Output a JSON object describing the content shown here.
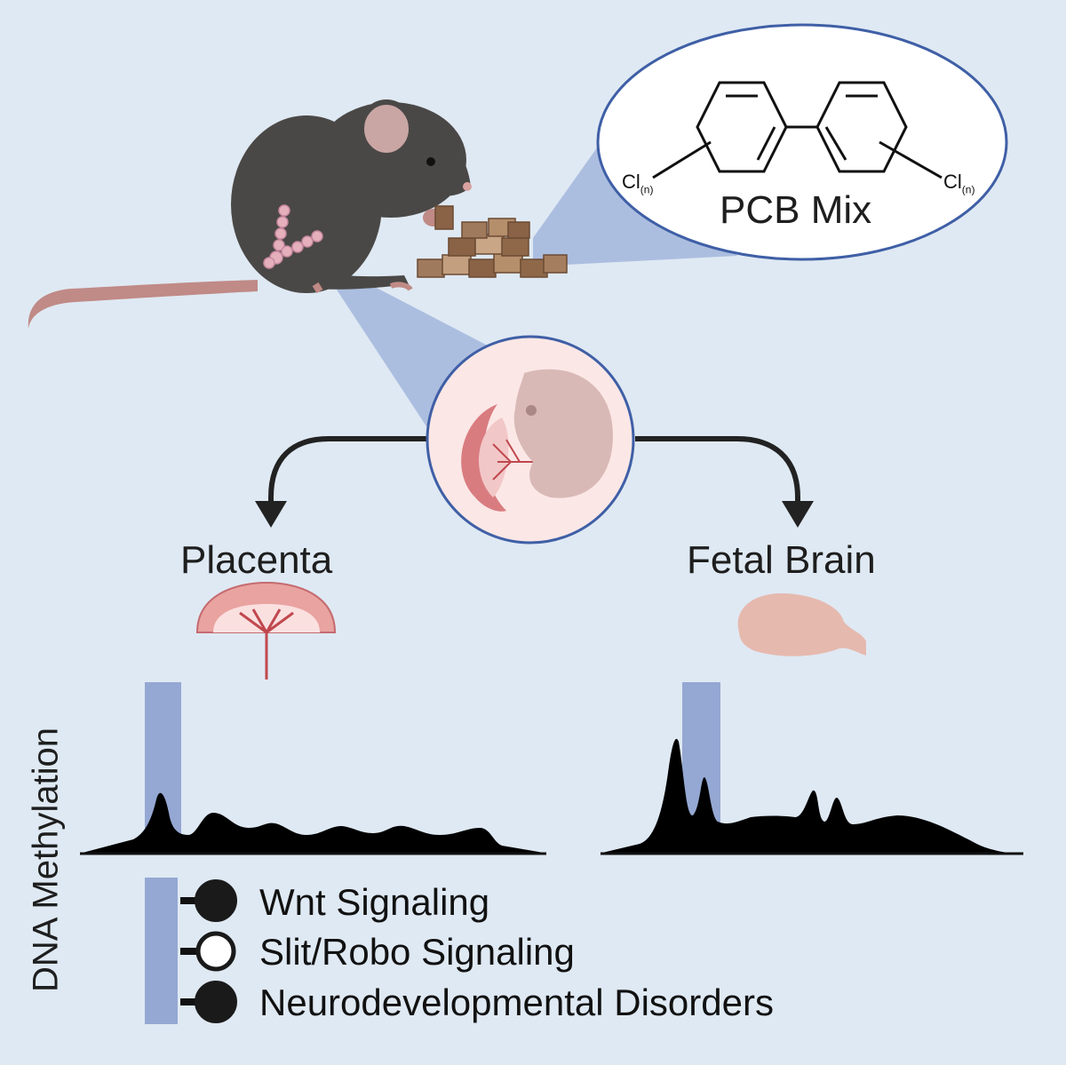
{
  "labels": {
    "pcb_mix": "PCB Mix",
    "cl_left": "Cl",
    "cl_right": "Cl",
    "cl_subscript": "(n)",
    "placenta": "Placenta",
    "fetal_brain": "Fetal Brain",
    "y_axis": "DNA Methylation"
  },
  "legend": [
    {
      "label": "Wnt Signaling",
      "marker": "filled"
    },
    {
      "label": "Slit/Robo Signaling",
      "marker": "open"
    },
    {
      "label": "Neurodevelopmental Disorders",
      "marker": "filled"
    }
  ],
  "colors": {
    "background": "#dfe9f3",
    "highlight": "#95a8d3",
    "mouse": "#4a4846",
    "tail": "#c08a86",
    "placenta_pink": "#e9a3a0",
    "brain": "#e6b9af",
    "peaks": "#000000"
  }
}
